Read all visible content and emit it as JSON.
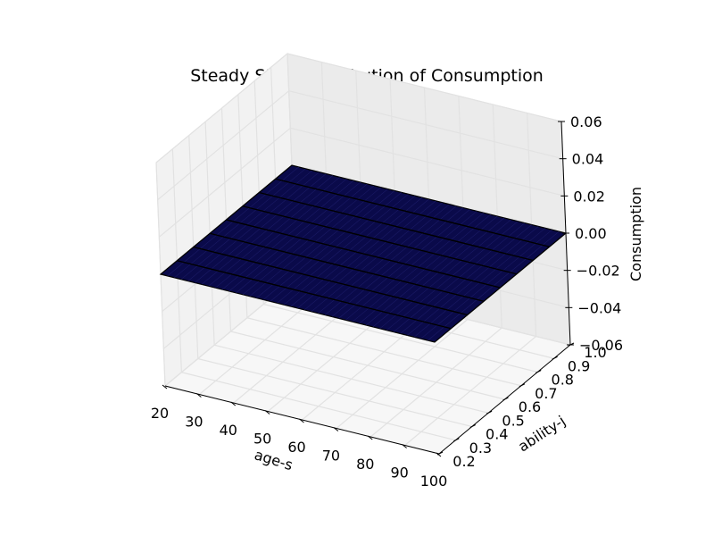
{
  "chart_data": {
    "type": "surface",
    "title": "Steady State Distribution of Consumption",
    "xlabel": "age-s",
    "ylabel": "ability-j",
    "zlabel": "Consumption",
    "x_ticks": [
      "20",
      "30",
      "40",
      "50",
      "60",
      "70",
      "80",
      "90",
      "100"
    ],
    "y_ticks": [
      "0.2",
      "0.3",
      "0.4",
      "0.5",
      "0.6",
      "0.7",
      "0.8",
      "0.9",
      "1.0"
    ],
    "z_ticks": [
      "−0.06",
      "−0.04",
      "−0.02",
      "0.00",
      "0.02",
      "0.04",
      "0.06"
    ],
    "xlim": [
      20,
      100
    ],
    "ylim": [
      0.2,
      1.0
    ],
    "zlim": [
      -0.06,
      0.06
    ],
    "surface_value": 0,
    "surface_color": "#0a0a4a",
    "grid": true
  }
}
